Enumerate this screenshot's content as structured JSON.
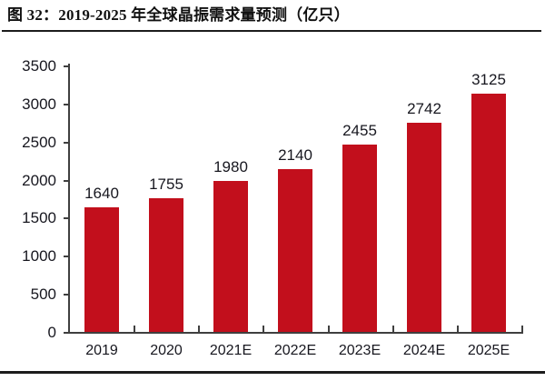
{
  "header": {
    "title": "图 32：2019-2025 年全球晶振需求量预测（亿只）"
  },
  "chart_data": {
    "type": "bar",
    "title": "图 32：2019-2025 年全球晶振需求量预测（亿只）",
    "categories": [
      "2019",
      "2020",
      "2021E",
      "2022E",
      "2023E",
      "2024E",
      "2025E"
    ],
    "values": [
      1640,
      1755,
      1980,
      2140,
      2455,
      2742,
      3125
    ],
    "xlabel": "",
    "ylabel": "",
    "ylim": [
      0,
      3500
    ],
    "ytick_step": 500,
    "yticks": [
      0,
      500,
      1000,
      1500,
      2000,
      2500,
      3000,
      3500
    ],
    "grid": false,
    "legend": false,
    "bar_color": "#c20f1c",
    "axis_color": "#3f3f3f",
    "text_color": "#17171f",
    "rule_color": "#1c1c1c"
  }
}
